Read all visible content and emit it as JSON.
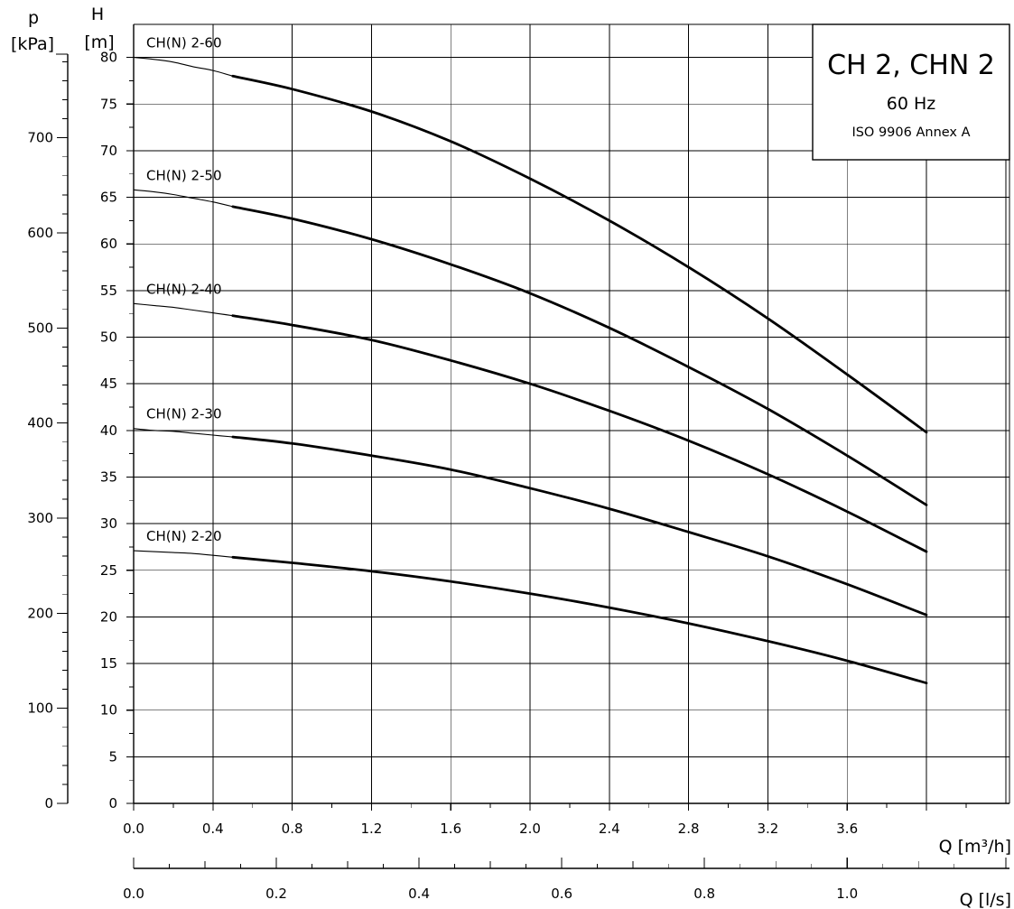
{
  "chart_data": {
    "type": "line",
    "title": "CH 2, CHN 2",
    "subtitle": "60 Hz",
    "standard": "ISO 9906 Annex A",
    "x_label": "Q [m³/h]",
    "x2_label": "Q [l/s]",
    "y_label_head": "H",
    "y_label_head_unit": "[m]",
    "y_label_pressure": "p",
    "y_label_pressure_unit": "[kPa]",
    "xlim": [
      0,
      4.4
    ],
    "ylim": [
      0,
      80
    ],
    "x_ticks": [
      "0.0",
      "0.4",
      "0.8",
      "1.2",
      "1.6",
      "2.0",
      "2.4",
      "2.8",
      "3.2",
      "3.6"
    ],
    "x2_ticks": [
      "0.0",
      "0.2",
      "0.4",
      "0.6",
      "0.8",
      "1.0"
    ],
    "y_ticks": [
      "0",
      "5",
      "10",
      "15",
      "20",
      "25",
      "30",
      "35",
      "40",
      "45",
      "50",
      "55",
      "60",
      "65",
      "70",
      "75",
      "80"
    ],
    "p_ticks": [
      "0",
      "100",
      "200",
      "300",
      "400",
      "500",
      "600",
      "700"
    ],
    "grid": true,
    "series": [
      {
        "name": "CH(N) 2-60",
        "thin_x": [
          0,
          0.1,
          0.2,
          0.3,
          0.4,
          0.5
        ],
        "thin_y": [
          80,
          79.8,
          79.5,
          79,
          78.6,
          78
        ],
        "x": [
          0.5,
          0.8,
          1.2,
          1.6,
          2.0,
          2.4,
          2.8,
          3.2,
          3.6,
          4.0
        ],
        "y": [
          78,
          76.6,
          74.2,
          71,
          67,
          62.5,
          57.5,
          52,
          46,
          39.8
        ]
      },
      {
        "name": "CH(N) 2-50",
        "thin_x": [
          0,
          0.1,
          0.2,
          0.3,
          0.4,
          0.5
        ],
        "thin_y": [
          65.8,
          65.6,
          65.3,
          64.9,
          64.5,
          64
        ],
        "x": [
          0.5,
          0.8,
          1.2,
          1.6,
          2.0,
          2.4,
          2.8,
          3.2,
          3.6,
          4.0
        ],
        "y": [
          64,
          62.7,
          60.5,
          57.8,
          54.7,
          51,
          46.8,
          42.3,
          37.3,
          32
        ]
      },
      {
        "name": "CH(N) 2-40",
        "thin_x": [
          0,
          0.1,
          0.2,
          0.3,
          0.4,
          0.5
        ],
        "thin_y": [
          53.6,
          53.4,
          53.2,
          52.9,
          52.6,
          52.3
        ],
        "x": [
          0.5,
          0.8,
          1.2,
          1.6,
          2.0,
          2.4,
          2.8,
          3.2,
          3.6,
          4.0
        ],
        "y": [
          52.3,
          51.3,
          49.7,
          47.5,
          45,
          42.1,
          38.9,
          35.3,
          31.3,
          27
        ]
      },
      {
        "name": "CH(N) 2-30",
        "thin_x": [
          0,
          0.1,
          0.2,
          0.3,
          0.4,
          0.5
        ],
        "thin_y": [
          40.2,
          40,
          39.9,
          39.7,
          39.5,
          39.3
        ],
        "x": [
          0.5,
          0.8,
          1.2,
          1.6,
          2.0,
          2.4,
          2.8,
          3.2,
          3.6,
          4.0
        ],
        "y": [
          39.3,
          38.6,
          37.3,
          35.8,
          33.8,
          31.6,
          29.1,
          26.5,
          23.5,
          20.2
        ]
      },
      {
        "name": "CH(N) 2-20",
        "thin_x": [
          0,
          0.1,
          0.2,
          0.3,
          0.4,
          0.5
        ],
        "thin_y": [
          27.1,
          27,
          26.9,
          26.8,
          26.6,
          26.4
        ],
        "x": [
          0.5,
          0.8,
          1.2,
          1.6,
          2.0,
          2.4,
          2.8,
          3.2,
          3.6,
          4.0
        ],
        "y": [
          26.4,
          25.8,
          24.9,
          23.8,
          22.5,
          21,
          19.3,
          17.4,
          15.3,
          12.9
        ]
      }
    ]
  }
}
